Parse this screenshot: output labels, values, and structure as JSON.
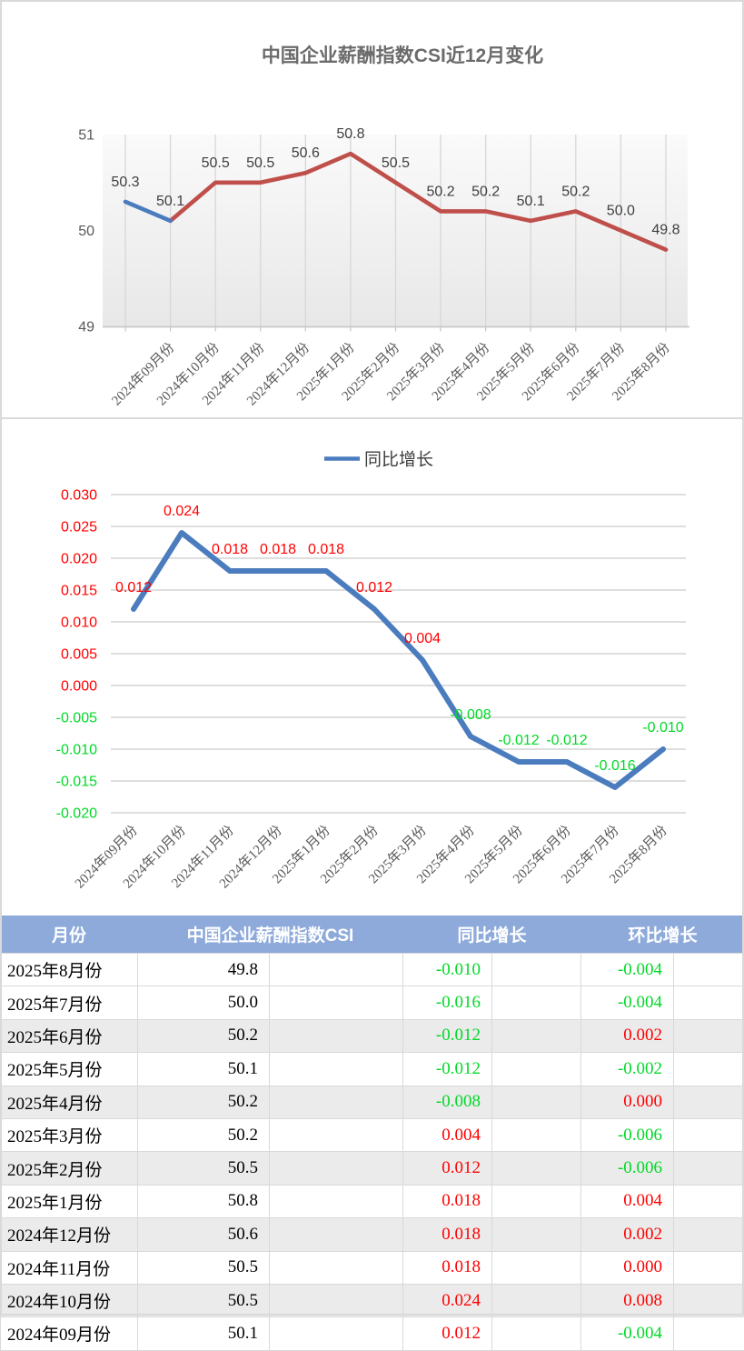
{
  "colors": {
    "line_blue": "#4a7cbe",
    "line_red": "#bf4f4a",
    "positive_red": "#ff0000",
    "negative_green": "#00d927",
    "header_bg": "#8eaadb",
    "stripe_gray": "#ebebeb",
    "axis_text": "#595959",
    "data_label_text": "#3f3f3f",
    "grid_gray": "#d9d9d9",
    "title_gray": "#6b6b6b"
  },
  "chart_data": [
    {
      "type": "line",
      "title": "中国企业薪酬指数CSI近12月变化",
      "categories": [
        "",
        "2024年09月份",
        "2024年10月份",
        "2024年11月份",
        "2024年12月份",
        "2025年1月份",
        "2025年2月份",
        "2025年3月份",
        "2025年4月份",
        "2025年5月份",
        "2025年6月份",
        "2025年7月份",
        "2025年8月份"
      ],
      "series": [
        {
          "name": "中国企业薪酬指数CSI",
          "values": [
            50.3,
            50.1,
            50.5,
            50.5,
            50.6,
            50.8,
            50.5,
            50.2,
            50.2,
            50.1,
            50.2,
            50.0,
            49.8
          ],
          "point_labels": [
            "50.3",
            "50.1",
            "50.5",
            "50.5",
            "50.6",
            "50.8",
            "50.5",
            "50.2",
            "50.2",
            "50.1",
            "50.2",
            "50.0",
            "49.8"
          ],
          "first_segment_color": "#4a7cbe",
          "rest_color": "#bf4f4a"
        }
      ],
      "ylim": [
        49,
        51
      ],
      "yticks": [
        "51",
        "50",
        "49"
      ],
      "ytick_values": [
        51,
        50,
        49
      ],
      "grid": "vertical",
      "legend_position": "none",
      "plot_background": "gradient-gray"
    },
    {
      "type": "line",
      "legend": "同比增长",
      "categories": [
        "2024年09月份",
        "2024年10月份",
        "2024年11月份",
        "2024年12月份",
        "2025年1月份",
        "2025年2月份",
        "2025年3月份",
        "2025年4月份",
        "2025年5月份",
        "2025年6月份",
        "2025年7月份",
        "2025年8月份"
      ],
      "series": [
        {
          "name": "同比增长",
          "values": [
            0.012,
            0.024,
            0.018,
            0.018,
            0.018,
            0.012,
            0.004,
            -0.008,
            -0.012,
            -0.012,
            -0.016,
            -0.01
          ],
          "point_labels": [
            "0.012",
            "0.024",
            "0.018",
            "0.018",
            "0.018",
            "0.012",
            "0.004",
            "-0.008",
            "-0.012",
            "-0.012",
            "-0.016",
            "-0.010"
          ],
          "color": "#4a7cbe"
        }
      ],
      "ylim": [
        -0.02,
        0.03
      ],
      "yticks": [
        "0.030",
        "0.025",
        "0.020",
        "0.015",
        "0.010",
        "0.005",
        "0.000",
        "-0.005",
        "-0.010",
        "-0.015",
        "-0.020"
      ],
      "ytick_values": [
        0.03,
        0.025,
        0.02,
        0.015,
        0.01,
        0.005,
        0.0,
        -0.005,
        -0.01,
        -0.015,
        -0.02
      ],
      "grid": "horizontal",
      "legend_position": "top",
      "label_color_rule": "red-nonnegative-green-negative"
    }
  ],
  "table": {
    "headers": [
      "月份",
      "中国企业薪酬指数CSI",
      "同比增长",
      "环比增长"
    ],
    "rows": [
      {
        "month": "2025年8月份",
        "csi": "49.8",
        "yoy": "-0.010",
        "mom": "-0.004"
      },
      {
        "month": "2025年7月份",
        "csi": "50.0",
        "yoy": "-0.016",
        "mom": "-0.004"
      },
      {
        "month": "2025年6月份",
        "csi": "50.2",
        "yoy": "-0.012",
        "mom": "0.002"
      },
      {
        "month": "2025年5月份",
        "csi": "50.1",
        "yoy": "-0.012",
        "mom": "-0.002"
      },
      {
        "month": "2025年4月份",
        "csi": "50.2",
        "yoy": "-0.008",
        "mom": "0.000"
      },
      {
        "month": "2025年3月份",
        "csi": "50.2",
        "yoy": "0.004",
        "mom": "-0.006"
      },
      {
        "month": "2025年2月份",
        "csi": "50.5",
        "yoy": "0.012",
        "mom": "-0.006"
      },
      {
        "month": "2025年1月份",
        "csi": "50.8",
        "yoy": "0.018",
        "mom": "0.004"
      },
      {
        "month": "2024年12月份",
        "csi": "50.6",
        "yoy": "0.018",
        "mom": "0.002"
      },
      {
        "month": "2024年11月份",
        "csi": "50.5",
        "yoy": "0.018",
        "mom": "0.000"
      },
      {
        "month": "2024年10月份",
        "csi": "50.5",
        "yoy": "0.024",
        "mom": "0.008"
      },
      {
        "month": "2024年09月份",
        "csi": "50.1",
        "yoy": "0.012",
        "mom": "-0.004"
      }
    ]
  }
}
